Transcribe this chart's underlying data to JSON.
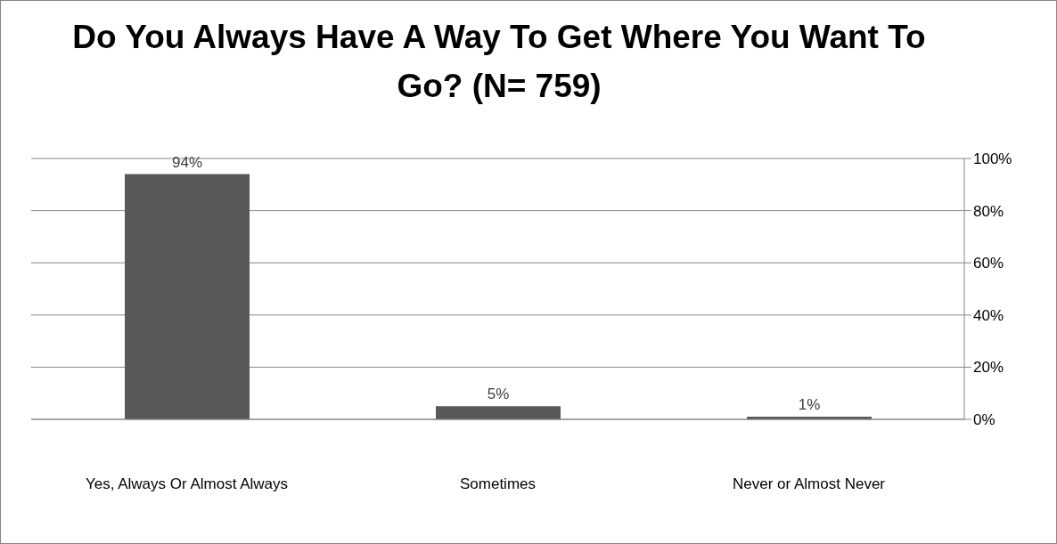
{
  "chart_data": {
    "type": "bar",
    "title": "Do You Always Have A Way To Get Where You Want To Go? (N= 759)",
    "categories": [
      "Yes, Always Or Almost Always",
      "Sometimes",
      "Never or Almost Never"
    ],
    "values": [
      94,
      5,
      1
    ],
    "value_labels": [
      "94%",
      "5%",
      "1%"
    ],
    "color": "#595959",
    "ylim": [
      0,
      100
    ],
    "yticks": [
      {
        "value": 0,
        "label": "0%"
      },
      {
        "value": 20,
        "label": "20%"
      },
      {
        "value": 40,
        "label": "40%"
      },
      {
        "value": 60,
        "label": "60%"
      },
      {
        "value": 80,
        "label": "80%"
      },
      {
        "value": 100,
        "label": "100%"
      }
    ],
    "grid": "y",
    "legend": false
  }
}
